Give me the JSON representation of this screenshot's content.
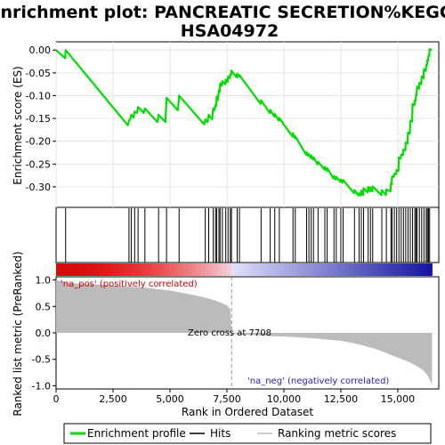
{
  "chart_data": {
    "type": "line",
    "title_lines": [
      "Enrichment plot: PANCREATIC SECRETION%KEGG%",
      "HSA04972"
    ],
    "panels": {
      "enrichment": {
        "ylabel": "Enrichment score (ES)",
        "ylim": [
          -0.345,
          0.018
        ],
        "yticks": [
          0.0,
          -0.05,
          -0.1,
          -0.15,
          -0.2,
          -0.25,
          -0.3
        ],
        "ytick_labels": [
          "0.00",
          "-0.05",
          "-0.10",
          "-0.15",
          "-0.20",
          "-0.25",
          "-0.30"
        ],
        "line_color": "#00dd00",
        "grid": true
      },
      "ranked_metric": {
        "ylabel": "Ranked list metric (PreRanked)",
        "xlabel": "Rank in Ordered Dataset",
        "ylim": [
          -1.06,
          1.06
        ],
        "yticks": [
          1.0,
          0.5,
          0.0,
          -0.5,
          -1.0
        ],
        "ytick_labels": [
          "1.0",
          "0.5",
          "0.0",
          "-0.5",
          "-1.0"
        ],
        "pos_label": "'na_pos' (positively correlated)",
        "neg_label": "'na_neg' (negatively correlated)",
        "zero_cross_label": "Zero cross at 7708",
        "zero_cross": 7708
      }
    },
    "xlim": [
      0,
      16800
    ],
    "xticks": [
      0,
      2500,
      5000,
      7500,
      10000,
      12500,
      15000
    ],
    "xtick_labels": [
      "0",
      "2,500",
      "5,000",
      "7,500",
      "10,000",
      "12,500",
      "15,000"
    ],
    "n_genes": 16500,
    "hits": [
      420,
      3200,
      3300,
      3450,
      3600,
      3900,
      4500,
      4850,
      5400,
      6550,
      6700,
      6900,
      7000,
      7050,
      7150,
      7200,
      7300,
      7450,
      7550,
      7650,
      7700,
      7950,
      8050,
      9000,
      9400,
      9600,
      9800,
      10400,
      10500,
      11000,
      11100,
      11200,
      11300,
      11500,
      11800,
      11900,
      12200,
      12300,
      12500,
      12600,
      13100,
      13300,
      13400,
      13500,
      13700,
      13800,
      13900,
      14300,
      14500,
      14700,
      14750,
      14850,
      14950,
      15050,
      15150,
      15250,
      15350,
      15450,
      15550,
      15650,
      15750,
      15800,
      15850,
      15950,
      16050,
      16150,
      16250,
      16300,
      16350,
      16400
    ],
    "es_curve": {
      "x": [
        0,
        400,
        420,
        3150,
        3200,
        3250,
        3300,
        3400,
        3450,
        3550,
        3600,
        3850,
        3900,
        4450,
        4500,
        4800,
        4850,
        5350,
        5400,
        6500,
        6550,
        6650,
        6700,
        6850,
        6900,
        6950,
        7000,
        7030,
        7050,
        7100,
        7150,
        7180,
        7200,
        7280,
        7300,
        7430,
        7450,
        7530,
        7550,
        7630,
        7650,
        7680,
        7700,
        7930,
        7950,
        8030,
        8050,
        8980,
        9000,
        9380,
        9400,
        9580,
        9600,
        9780,
        9800,
        10380,
        10400,
        10480,
        10500,
        10980,
        11000,
        11080,
        11100,
        11180,
        11200,
        11280,
        11300,
        11480,
        11500,
        11780,
        11800,
        11880,
        11900,
        12180,
        12200,
        12280,
        12300,
        12480,
        12500,
        12580,
        12600,
        13080,
        13100,
        13280,
        13300,
        13380,
        13400,
        13480,
        13500,
        13680,
        13700,
        13780,
        13800,
        13880,
        13900,
        14280,
        14300,
        14480,
        14500,
        14680,
        14700,
        14730,
        14750,
        14830,
        14850,
        14930,
        14950,
        15030,
        15050,
        15130,
        15150,
        15230,
        15250,
        15330,
        15350,
        15430,
        15450,
        15530,
        15550,
        15630,
        15650,
        15730,
        15750,
        15780,
        15800,
        15830,
        15850,
        15930,
        15950,
        16030,
        16050,
        16130,
        16150,
        16230,
        16250,
        16280,
        16300,
        16330,
        16350,
        16380,
        16400,
        16500
      ],
      "y": [
        0.0,
        -0.018,
        0.0,
        -0.165,
        -0.155,
        -0.152,
        -0.142,
        -0.148,
        -0.135,
        -0.138,
        -0.125,
        -0.138,
        -0.128,
        -0.158,
        -0.142,
        -0.158,
        -0.105,
        -0.132,
        -0.1,
        -0.163,
        -0.152,
        -0.158,
        -0.142,
        -0.152,
        -0.128,
        -0.132,
        -0.12,
        -0.122,
        -0.102,
        -0.11,
        -0.088,
        -0.092,
        -0.073,
        -0.078,
        -0.068,
        -0.075,
        -0.065,
        -0.07,
        -0.058,
        -0.062,
        -0.053,
        -0.055,
        -0.045,
        -0.06,
        -0.052,
        -0.058,
        -0.055,
        -0.118,
        -0.11,
        -0.138,
        -0.131,
        -0.146,
        -0.14,
        -0.155,
        -0.149,
        -0.19,
        -0.182,
        -0.193,
        -0.189,
        -0.23,
        -0.224,
        -0.232,
        -0.228,
        -0.237,
        -0.231,
        -0.24,
        -0.235,
        -0.251,
        -0.245,
        -0.262,
        -0.256,
        -0.265,
        -0.259,
        -0.282,
        -0.276,
        -0.284,
        -0.278,
        -0.289,
        -0.284,
        -0.291,
        -0.285,
        -0.314,
        -0.307,
        -0.319,
        -0.314,
        -0.319,
        -0.308,
        -0.318,
        -0.303,
        -0.312,
        -0.3,
        -0.31,
        -0.301,
        -0.31,
        -0.299,
        -0.318,
        -0.307,
        -0.318,
        -0.306,
        -0.31,
        -0.292,
        -0.295,
        -0.277,
        -0.278,
        -0.271,
        -0.272,
        -0.263,
        -0.265,
        -0.236,
        -0.238,
        -0.229,
        -0.23,
        -0.218,
        -0.22,
        -0.203,
        -0.205,
        -0.181,
        -0.183,
        -0.155,
        -0.157,
        -0.118,
        -0.121,
        -0.111,
        -0.112,
        -0.098,
        -0.099,
        -0.08,
        -0.085,
        -0.072,
        -0.075,
        -0.058,
        -0.062,
        -0.042,
        -0.046,
        -0.033,
        -0.034,
        -0.022,
        -0.024,
        -0.012,
        -0.013,
        0.002,
        0.0
      ]
    },
    "metric_profile": {
      "rank": [
        0,
        200,
        500,
        1000,
        2000,
        3000,
        4000,
        5000,
        6000,
        6500,
        7000,
        7300,
        7500,
        7650,
        7708,
        7800,
        8500,
        9500,
        10500,
        11500,
        12500,
        13000,
        13500,
        14000,
        14500,
        15000,
        15500,
        15800,
        16100,
        16300,
        16450,
        16500
      ],
      "value": [
        1.0,
        0.98,
        0.95,
        0.93,
        0.91,
        0.88,
        0.85,
        0.8,
        0.72,
        0.67,
        0.61,
        0.56,
        0.52,
        0.45,
        0.0,
        -0.02,
        -0.04,
        -0.06,
        -0.08,
        -0.11,
        -0.15,
        -0.19,
        -0.24,
        -0.3,
        -0.38,
        -0.47,
        -0.55,
        -0.62,
        -0.7,
        -0.8,
        -0.92,
        -1.0
      ]
    },
    "legend": [
      {
        "label": "Enrichment profile",
        "color": "#00dd00",
        "style": "line"
      },
      {
        "label": "Hits",
        "color": "#000000",
        "style": "line"
      },
      {
        "label": "Ranking metric scores",
        "color": "#bbbbbb",
        "style": "line"
      }
    ]
  }
}
